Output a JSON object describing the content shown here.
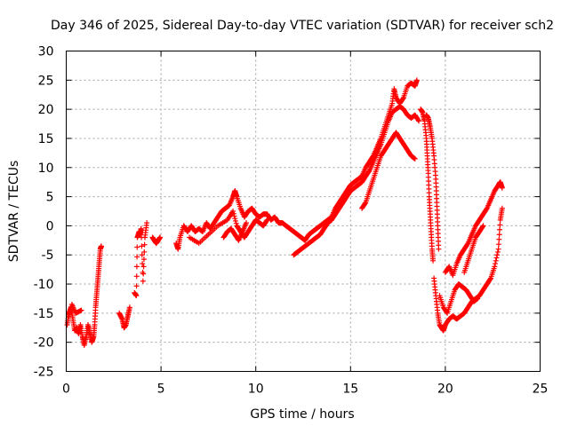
{
  "chart_data": {
    "type": "scatter",
    "title": "Day 346 of 2025, Sidereal Day-to-day VTEC variation (SDTVAR) for receiver sch2",
    "xlabel": "GPS time / hours",
    "ylabel": "SDTVAR / TECUs",
    "xlim": [
      0,
      25
    ],
    "ylim": [
      -25,
      30
    ],
    "xticks": [
      0,
      5,
      10,
      15,
      20,
      25
    ],
    "yticks": [
      -25,
      -20,
      -15,
      -10,
      -5,
      0,
      5,
      10,
      15,
      20,
      25,
      30
    ],
    "grid": true,
    "marker": "+",
    "color": "#ff0000",
    "series": [
      {
        "name": "SDTVAR",
        "segments": [
          [
            [
              0.05,
              -17
            ],
            [
              0.15,
              -15
            ],
            [
              0.25,
              -14
            ],
            [
              0.35,
              -16
            ],
            [
              0.45,
              -18
            ],
            [
              0.55,
              -17.5
            ],
            [
              0.65,
              -18.5
            ],
            [
              0.75,
              -17
            ],
            [
              0.85,
              -19
            ],
            [
              0.95,
              -20.5
            ],
            [
              1.05,
              -19
            ],
            [
              1.15,
              -17
            ],
            [
              1.25,
              -18.5
            ],
            [
              1.35,
              -20
            ],
            [
              1.45,
              -19
            ],
            [
              1.5,
              -17
            ],
            [
              1.55,
              -14
            ],
            [
              1.6,
              -12
            ],
            [
              1.65,
              -10
            ],
            [
              1.7,
              -8
            ],
            [
              1.75,
              -6
            ],
            [
              1.8,
              -4
            ],
            [
              1.85,
              -3.5
            ]
          ],
          [
            [
              0.1,
              -16
            ],
            [
              0.3,
              -13.5
            ],
            [
              0.5,
              -15
            ],
            [
              0.8,
              -14.5
            ]
          ],
          [
            [
              2.8,
              -15
            ],
            [
              2.95,
              -16
            ],
            [
              3.05,
              -17.5
            ],
            [
              3.15,
              -17
            ],
            [
              3.25,
              -15.5
            ],
            [
              3.35,
              -14
            ]
          ],
          [
            [
              3.6,
              -11.5
            ],
            [
              3.7,
              -12
            ],
            [
              3.75,
              -2
            ],
            [
              3.85,
              -1
            ],
            [
              3.9,
              -1.5
            ],
            [
              3.95,
              -0.5
            ],
            [
              4.05,
              -9.5
            ],
            [
              4.15,
              -2
            ],
            [
              4.25,
              0.5
            ]
          ],
          [
            [
              4.55,
              -2
            ],
            [
              4.65,
              -2.5
            ],
            [
              4.75,
              -3
            ],
            [
              4.85,
              -2.5
            ],
            [
              4.95,
              -2
            ]
          ],
          [
            [
              5.8,
              -3
            ],
            [
              5.9,
              -4
            ],
            [
              6.0,
              -2
            ],
            [
              6.2,
              0
            ],
            [
              6.4,
              -1
            ],
            [
              6.6,
              0
            ],
            [
              6.8,
              -1
            ],
            [
              7.0,
              -0.5
            ],
            [
              7.2,
              -1
            ],
            [
              7.4,
              0.5
            ],
            [
              7.6,
              -0.5
            ],
            [
              7.8,
              0.5
            ],
            [
              8.0,
              1.5
            ],
            [
              8.2,
              2.5
            ],
            [
              8.4,
              3
            ],
            [
              8.6,
              3.5
            ],
            [
              8.8,
              5
            ],
            [
              8.9,
              6
            ],
            [
              9.0,
              5
            ],
            [
              9.2,
              3
            ],
            [
              9.4,
              1.5
            ],
            [
              9.6,
              2.5
            ],
            [
              9.8,
              3
            ],
            [
              10.0,
              2
            ],
            [
              10.2,
              1.5
            ],
            [
              10.4,
              2
            ],
            [
              10.6,
              2
            ],
            [
              10.8,
              1
            ],
            [
              11.0,
              1.5
            ],
            [
              11.2,
              0.5
            ],
            [
              11.4,
              0.5
            ],
            [
              11.6,
              0
            ],
            [
              11.8,
              -0.5
            ],
            [
              12.0,
              -1
            ],
            [
              12.2,
              -1.5
            ],
            [
              12.4,
              -2
            ],
            [
              12.6,
              -2.5
            ],
            [
              12.8,
              -1.5
            ],
            [
              13.0,
              -1
            ],
            [
              13.2,
              -0.5
            ],
            [
              13.4,
              0
            ],
            [
              13.6,
              0.5
            ],
            [
              13.8,
              1
            ],
            [
              14.0,
              1.5
            ],
            [
              14.2,
              3
            ],
            [
              14.4,
              4
            ],
            [
              14.6,
              5
            ],
            [
              14.8,
              6
            ],
            [
              15.0,
              7
            ],
            [
              15.2,
              7.5
            ],
            [
              15.4,
              8
            ],
            [
              15.6,
              8.5
            ],
            [
              15.8,
              10
            ],
            [
              16.0,
              11
            ],
            [
              16.2,
              12
            ],
            [
              16.4,
              13.5
            ],
            [
              16.6,
              15
            ],
            [
              16.8,
              17
            ],
            [
              17.0,
              19
            ],
            [
              17.2,
              21
            ],
            [
              17.3,
              23.5
            ],
            [
              17.4,
              22
            ],
            [
              17.6,
              21
            ],
            [
              17.8,
              22
            ],
            [
              18.0,
              24
            ],
            [
              18.2,
              24.5
            ],
            [
              18.4,
              24
            ],
            [
              18.5,
              25
            ]
          ],
          [
            [
              6.5,
              -2
            ],
            [
              7.0,
              -3
            ],
            [
              7.5,
              -1.5
            ],
            [
              8.0,
              0
            ],
            [
              8.5,
              1
            ],
            [
              8.8,
              2.5
            ],
            [
              9.0,
              0
            ],
            [
              9.2,
              -1
            ],
            [
              9.4,
              -2
            ],
            [
              9.6,
              -1
            ],
            [
              9.8,
              0
            ],
            [
              10.0,
              1
            ],
            [
              10.2,
              0.5
            ],
            [
              10.4,
              0
            ],
            [
              10.6,
              1
            ]
          ],
          [
            [
              8.3,
              -2
            ],
            [
              8.5,
              -1
            ],
            [
              8.7,
              -0.5
            ],
            [
              8.9,
              -1.5
            ],
            [
              9.1,
              -2.5
            ],
            [
              9.3,
              -1
            ],
            [
              9.5,
              0.5
            ]
          ],
          [
            [
              12.0,
              -5
            ],
            [
              12.2,
              -4.5
            ],
            [
              12.4,
              -4
            ],
            [
              12.6,
              -3.5
            ],
            [
              12.8,
              -3
            ],
            [
              13.0,
              -2.5
            ],
            [
              13.2,
              -2
            ],
            [
              13.4,
              -1.5
            ],
            [
              13.6,
              -0.5
            ],
            [
              13.8,
              0.5
            ],
            [
              14.0,
              1
            ],
            [
              14.2,
              2
            ],
            [
              14.4,
              3
            ],
            [
              14.6,
              4
            ],
            [
              14.8,
              5
            ],
            [
              15.0,
              6
            ],
            [
              15.2,
              6.5
            ],
            [
              15.4,
              7
            ],
            [
              15.6,
              7.5
            ],
            [
              15.8,
              8.5
            ],
            [
              16.0,
              9.5
            ],
            [
              16.2,
              11
            ],
            [
              16.4,
              12.5
            ],
            [
              16.6,
              14
            ],
            [
              16.8,
              16
            ],
            [
              17.0,
              18
            ],
            [
              17.2,
              19.5
            ],
            [
              17.4,
              20
            ],
            [
              17.6,
              20.5
            ],
            [
              17.8,
              20
            ],
            [
              18.0,
              19
            ],
            [
              18.2,
              18.5
            ],
            [
              18.4,
              19
            ],
            [
              18.6,
              18
            ]
          ],
          [
            [
              15.6,
              3
            ],
            [
              15.8,
              4
            ],
            [
              16.0,
              6
            ],
            [
              16.2,
              8
            ],
            [
              16.4,
              10
            ],
            [
              16.6,
              12
            ],
            [
              16.8,
              13
            ],
            [
              17.0,
              14
            ],
            [
              17.2,
              15
            ],
            [
              17.4,
              16
            ],
            [
              17.6,
              15
            ],
            [
              17.8,
              14
            ],
            [
              18.0,
              13
            ],
            [
              18.2,
              12
            ],
            [
              18.4,
              11.5
            ]
          ],
          [
            [
              18.7,
              20
            ],
            [
              18.8,
              19.5
            ],
            [
              18.9,
              18
            ],
            [
              19.0,
              15
            ],
            [
              19.05,
              12
            ],
            [
              19.1,
              9
            ],
            [
              19.15,
              5
            ],
            [
              19.2,
              2
            ],
            [
              19.25,
              -1
            ],
            [
              19.3,
              -4
            ],
            [
              19.35,
              -6
            ]
          ],
          [
            [
              19.0,
              19
            ],
            [
              19.1,
              18.5
            ],
            [
              19.2,
              17
            ],
            [
              19.3,
              15
            ],
            [
              19.4,
              12
            ],
            [
              19.5,
              8
            ],
            [
              19.55,
              4
            ],
            [
              19.6,
              0
            ],
            [
              19.65,
              -4
            ]
          ],
          [
            [
              19.4,
              -9
            ],
            [
              19.5,
              -12
            ],
            [
              19.6,
              -15
            ],
            [
              19.7,
              -17
            ],
            [
              19.8,
              -17.5
            ],
            [
              19.9,
              -18
            ],
            [
              20.0,
              -17
            ],
            [
              20.2,
              -16
            ],
            [
              20.4,
              -15.5
            ],
            [
              20.6,
              -16
            ],
            [
              20.8,
              -15.5
            ],
            [
              21.0,
              -15
            ],
            [
              21.2,
              -14
            ],
            [
              21.4,
              -13
            ],
            [
              21.6,
              -12.5
            ],
            [
              21.8,
              -12
            ],
            [
              22.0,
              -11
            ],
            [
              22.2,
              -10
            ],
            [
              22.4,
              -9
            ],
            [
              22.6,
              -7
            ],
            [
              22.8,
              -4
            ],
            [
              22.9,
              1
            ],
            [
              23.0,
              3
            ]
          ],
          [
            [
              19.7,
              -12
            ],
            [
              19.9,
              -14
            ],
            [
              20.1,
              -15
            ],
            [
              20.3,
              -13
            ],
            [
              20.5,
              -11
            ],
            [
              20.7,
              -10
            ],
            [
              20.9,
              -10.5
            ],
            [
              21.1,
              -11
            ],
            [
              21.3,
              -12
            ],
            [
              21.5,
              -13
            ],
            [
              21.7,
              -12.5
            ]
          ],
          [
            [
              20.0,
              -8
            ],
            [
              20.2,
              -7
            ],
            [
              20.4,
              -8.5
            ],
            [
              20.6,
              -6.5
            ],
            [
              20.8,
              -5
            ],
            [
              21.0,
              -4
            ],
            [
              21.2,
              -3
            ],
            [
              21.4,
              -1.5
            ],
            [
              21.6,
              0
            ],
            [
              21.8,
              1
            ],
            [
              22.0,
              2
            ],
            [
              22.2,
              3
            ],
            [
              22.4,
              4.5
            ],
            [
              22.6,
              6
            ],
            [
              22.8,
              7
            ],
            [
              22.9,
              7.5
            ],
            [
              23.0,
              6.5
            ]
          ],
          [
            [
              21.0,
              -8
            ],
            [
              21.2,
              -6
            ],
            [
              21.4,
              -4
            ],
            [
              21.6,
              -2
            ],
            [
              21.8,
              -1
            ],
            [
              22.0,
              0
            ]
          ]
        ]
      }
    ]
  }
}
